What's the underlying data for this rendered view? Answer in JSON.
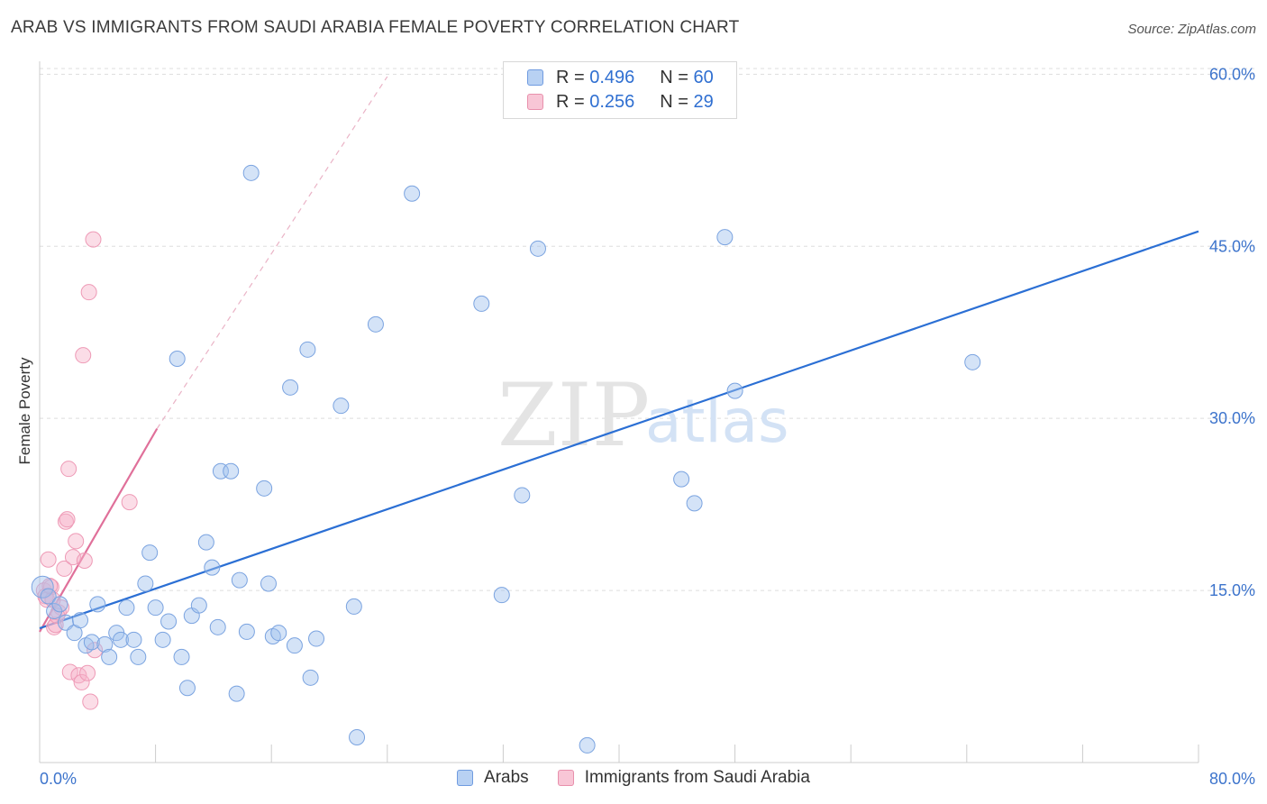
{
  "title": "ARAB VS IMMIGRANTS FROM SAUDI ARABIA FEMALE POVERTY CORRELATION CHART",
  "source": "Source: ZipAtlas.com",
  "watermark": {
    "zip": "ZIP",
    "atlas": "atlas"
  },
  "legend": {
    "rows": [
      {
        "r_label": "R = ",
        "r_value": "0.496",
        "n_label": "N = ",
        "n_value": "60",
        "fill": "#b8d1f3",
        "stroke": "#6f9be0"
      },
      {
        "r_label": "R = ",
        "r_value": "0.256",
        "n_label": "N = ",
        "n_value": "29",
        "fill": "#f8c6d6",
        "stroke": "#e890ac"
      }
    ]
  },
  "bottom_legend": {
    "arabs": "Arabs",
    "saudi": "Immigrants from Saudi Arabia"
  },
  "colors": {
    "blue_fill": "rgba(160,192,238,0.45)",
    "blue_stroke": "#7aa3e0",
    "blue_line": "#2b6fd4",
    "pink_fill": "rgba(246,180,202,0.45)",
    "pink_stroke": "#ee9ab6",
    "pink_line": "#e0709a",
    "grid": "#dddddd"
  },
  "chart_data": {
    "type": "scatter",
    "title": "ARAB VS IMMIGRANTS FROM SAUDI ARABIA FEMALE POVERTY CORRELATION CHART",
    "xlabel": "",
    "ylabel": "Female Poverty",
    "xlim": [
      0,
      80
    ],
    "ylim": [
      0,
      60.5
    ],
    "x_tick_labels": [
      "0.0%",
      "80.0%"
    ],
    "y_ticks": [
      15,
      30,
      45,
      60
    ],
    "y_tick_labels": [
      "15.0%",
      "30.0%",
      "45.0%",
      "60.0%"
    ],
    "series": [
      {
        "name": "Arabs",
        "r": 0.496,
        "n": 60,
        "trend": {
          "x0": 0,
          "y0": 11.7,
          "x1": 80,
          "y1": 46.3
        },
        "points": [
          [
            0.2,
            15.3
          ],
          [
            0.6,
            14.5
          ],
          [
            1.0,
            13.2
          ],
          [
            1.4,
            13.8
          ],
          [
            1.8,
            12.2
          ],
          [
            2.4,
            11.3
          ],
          [
            2.8,
            12.4
          ],
          [
            3.2,
            10.2
          ],
          [
            3.6,
            10.5
          ],
          [
            4.0,
            13.8
          ],
          [
            4.5,
            10.3
          ],
          [
            4.8,
            9.2
          ],
          [
            5.3,
            11.3
          ],
          [
            5.6,
            10.7
          ],
          [
            6.0,
            13.5
          ],
          [
            6.5,
            10.7
          ],
          [
            6.8,
            9.2
          ],
          [
            7.3,
            15.6
          ],
          [
            7.6,
            18.3
          ],
          [
            8.0,
            13.5
          ],
          [
            8.5,
            10.7
          ],
          [
            8.9,
            12.3
          ],
          [
            9.5,
            35.2
          ],
          [
            9.8,
            9.2
          ],
          [
            10.2,
            6.5
          ],
          [
            10.5,
            12.8
          ],
          [
            11.0,
            13.7
          ],
          [
            11.5,
            19.2
          ],
          [
            11.9,
            17.0
          ],
          [
            12.3,
            11.8
          ],
          [
            12.5,
            25.4
          ],
          [
            13.2,
            25.4
          ],
          [
            13.6,
            6.0
          ],
          [
            13.8,
            15.9
          ],
          [
            14.3,
            11.4
          ],
          [
            14.6,
            51.4
          ],
          [
            15.5,
            23.9
          ],
          [
            15.8,
            15.6
          ],
          [
            16.1,
            11.0
          ],
          [
            16.5,
            11.3
          ],
          [
            17.3,
            32.7
          ],
          [
            17.6,
            10.2
          ],
          [
            18.5,
            36.0
          ],
          [
            18.7,
            7.4
          ],
          [
            19.1,
            10.8
          ],
          [
            20.8,
            31.1
          ],
          [
            21.7,
            13.6
          ],
          [
            21.9,
            2.2
          ],
          [
            23.2,
            38.2
          ],
          [
            25.7,
            49.6
          ],
          [
            30.5,
            40.0
          ],
          [
            31.9,
            14.6
          ],
          [
            33.3,
            23.3
          ],
          [
            34.4,
            44.8
          ],
          [
            37.8,
            1.5
          ],
          [
            44.3,
            24.7
          ],
          [
            45.2,
            22.6
          ],
          [
            47.3,
            45.8
          ],
          [
            48.0,
            32.4
          ],
          [
            64.4,
            34.9
          ]
        ]
      },
      {
        "name": "Immigrants from Saudi Arabia",
        "r": 0.256,
        "n": 29,
        "trend": {
          "x0": 0,
          "y0": 11.4,
          "x1": 8.1,
          "y1": 29.1
        },
        "trend_ext": {
          "x0": 8.1,
          "y0": 29.1,
          "x1": 24.0,
          "y1": 59.8
        },
        "points": [
          [
            0.3,
            15.0
          ],
          [
            0.4,
            14.5
          ],
          [
            0.5,
            14.2
          ],
          [
            0.6,
            17.7
          ],
          [
            0.8,
            15.3
          ],
          [
            1.0,
            11.8
          ],
          [
            1.1,
            12.0
          ],
          [
            1.3,
            13.1
          ],
          [
            1.5,
            13.5
          ],
          [
            1.7,
            16.9
          ],
          [
            1.8,
            21.0
          ],
          [
            1.9,
            21.2
          ],
          [
            2.0,
            25.6
          ],
          [
            2.1,
            7.9
          ],
          [
            2.3,
            17.9
          ],
          [
            2.5,
            19.3
          ],
          [
            2.7,
            7.6
          ],
          [
            2.9,
            7.0
          ],
          [
            3.0,
            35.5
          ],
          [
            3.1,
            17.6
          ],
          [
            3.3,
            7.8
          ],
          [
            3.4,
            41.0
          ],
          [
            3.5,
            5.3
          ],
          [
            3.7,
            45.6
          ],
          [
            3.8,
            9.8
          ],
          [
            6.2,
            22.7
          ],
          [
            0.9,
            14.2
          ],
          [
            1.2,
            12.8
          ],
          [
            0.7,
            15.4
          ]
        ]
      }
    ]
  }
}
